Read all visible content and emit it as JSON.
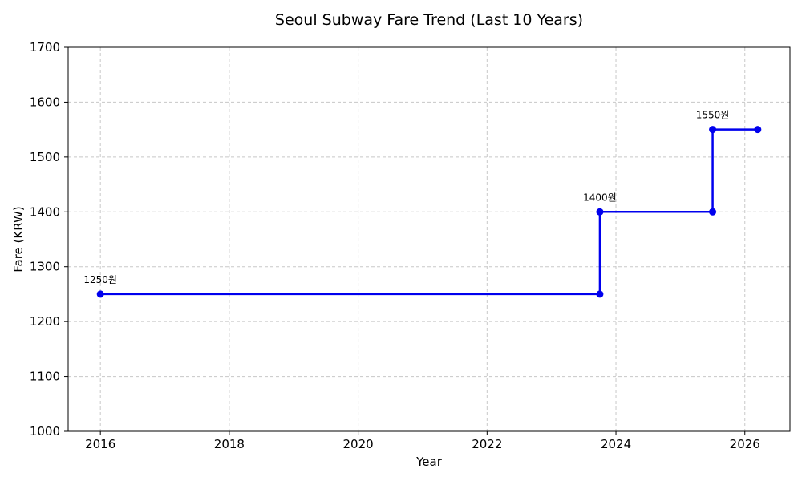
{
  "chart_data": {
    "type": "line",
    "step": "post",
    "title": "Seoul Subway Fare Trend (Last 10 Years)",
    "xlabel": "Year",
    "ylabel": "Fare (KRW)",
    "xlim": [
      2015.5,
      2026.7
    ],
    "ylim": [
      1000,
      1700
    ],
    "xticks": [
      "2016",
      "2018",
      "2020",
      "2022",
      "2024",
      "2026"
    ],
    "yticks": [
      "1000",
      "1100",
      "1200",
      "1300",
      "1400",
      "1500",
      "1600",
      "1700"
    ],
    "grid": true,
    "series": [
      {
        "color": "#0000ee",
        "points": [
          {
            "x": 2016.0,
            "y": 1250
          },
          {
            "x": 2023.75,
            "y": 1250
          },
          {
            "x": 2023.75,
            "y": 1400
          },
          {
            "x": 2025.5,
            "y": 1400
          },
          {
            "x": 2025.5,
            "y": 1550
          },
          {
            "x": 2026.2,
            "y": 1550
          }
        ]
      }
    ],
    "annotations": [
      {
        "x": 2016.0,
        "y": 1250,
        "text": "1250원"
      },
      {
        "x": 2023.75,
        "y": 1400,
        "text": "1400원"
      },
      {
        "x": 2025.5,
        "y": 1550,
        "text": "1550원"
      }
    ]
  }
}
